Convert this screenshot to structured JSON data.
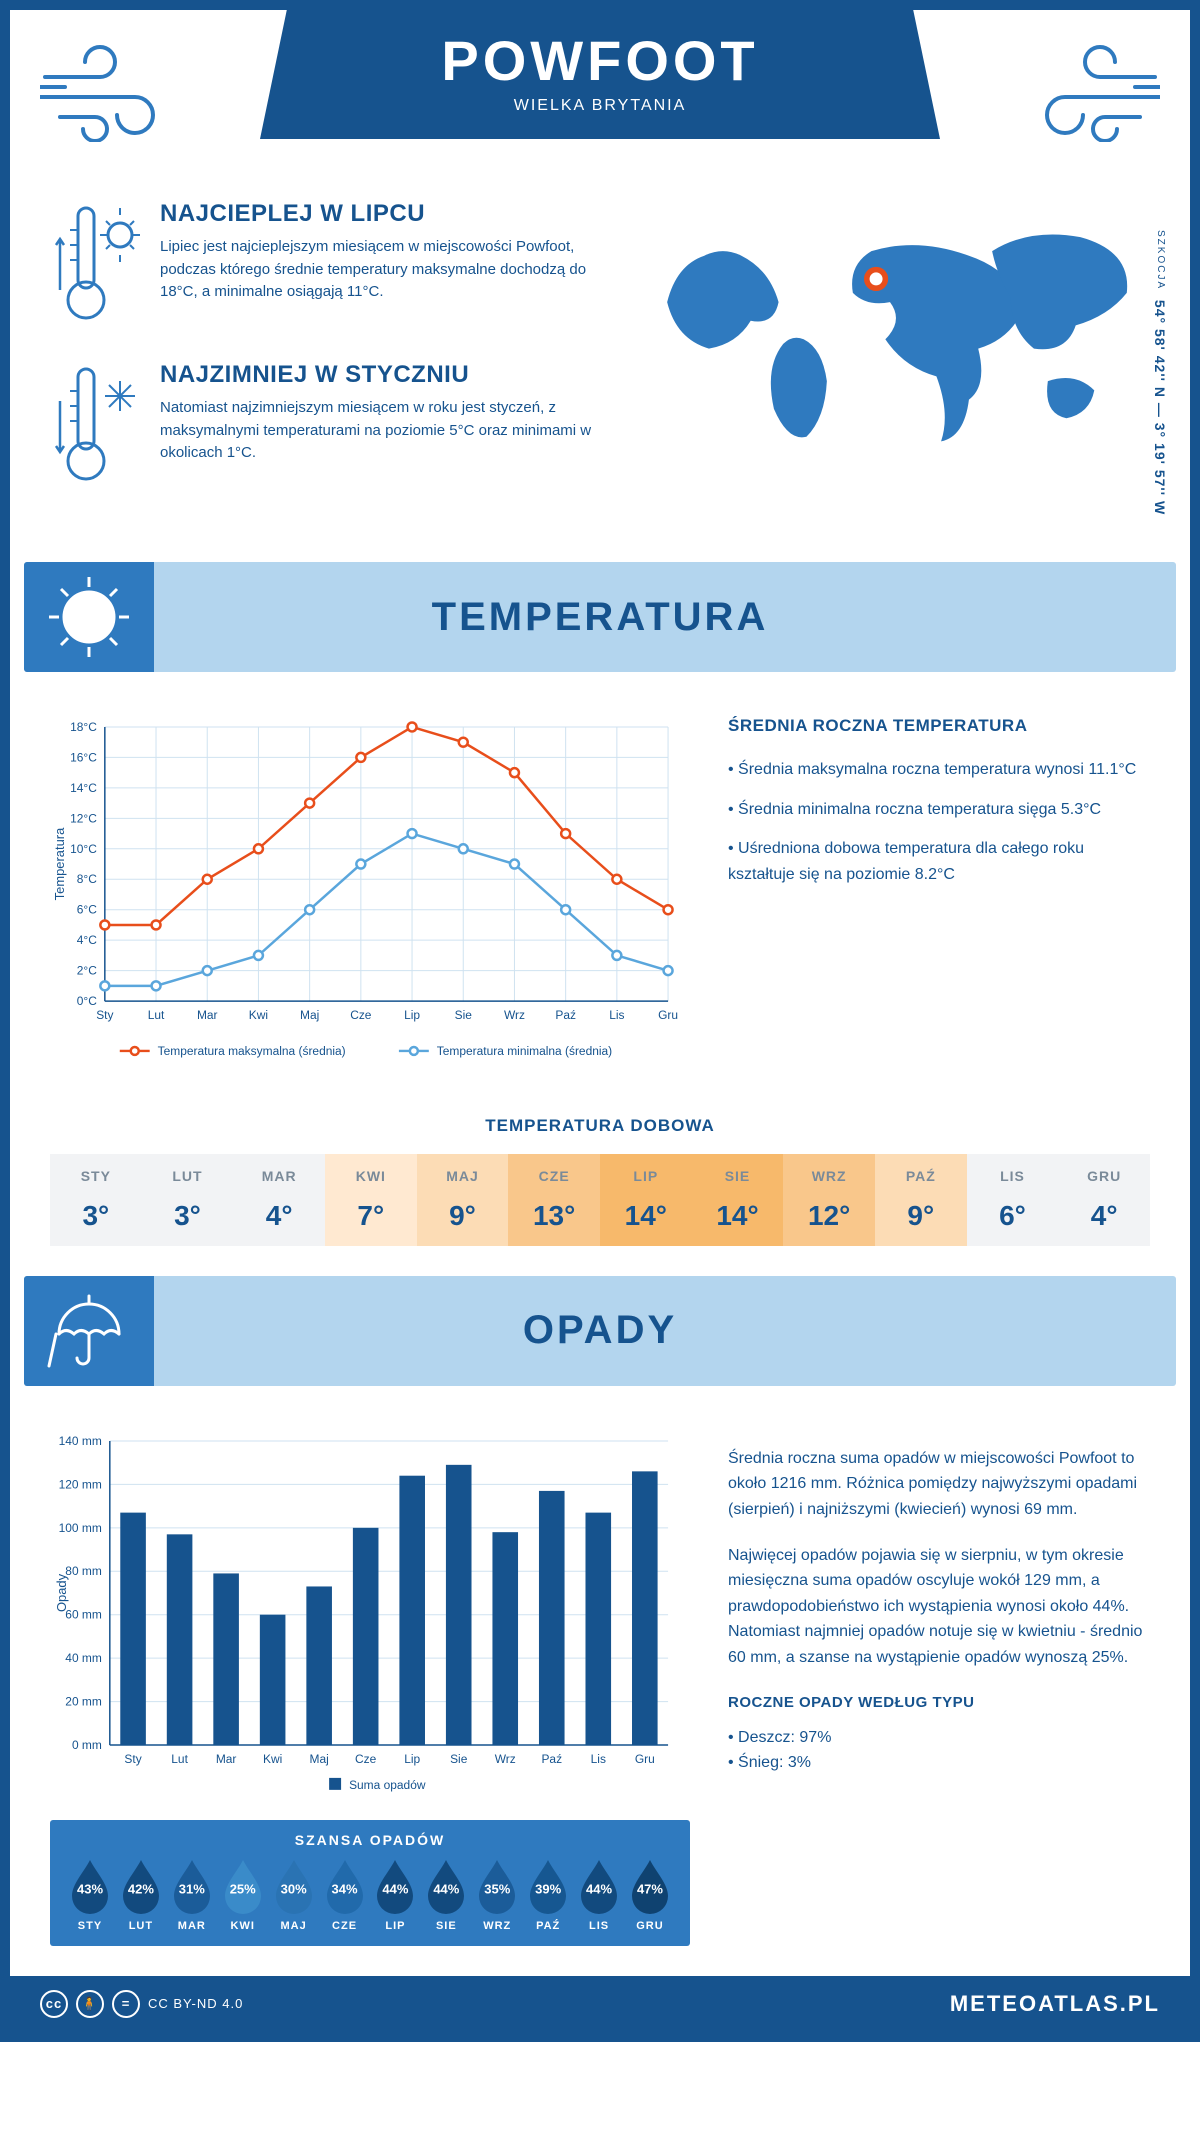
{
  "header": {
    "title": "POWFOOT",
    "subtitle": "WIELKA BRYTANIA"
  },
  "coords": {
    "line": "54° 58' 42'' N — 3° 19' 57'' W",
    "region": "SZKOCJA"
  },
  "map": {
    "marker_color": "#e84e1b",
    "land_color": "#2f7abf",
    "marker_x": 245,
    "marker_y": 85
  },
  "intro": {
    "hot": {
      "title": "NAJCIEPLEJ W LIPCU",
      "text": "Lipiec jest najcieplejszym miesiącem w miejscowości Powfoot, podczas którego średnie temperatury maksymalne dochodzą do 18°C, a minimalne osiągają 11°C."
    },
    "cold": {
      "title": "NAJZIMNIEJ W STYCZNIU",
      "text": "Natomiast najzimniejszym miesiącem w roku jest styczeń, z maksymalnymi temperaturami na poziomie 5°C oraz minimami w okolicach 1°C."
    }
  },
  "temp_section": {
    "title": "TEMPERATURA",
    "y_axis": "Temperatura",
    "y_ticks": [
      0,
      2,
      4,
      6,
      8,
      10,
      12,
      14,
      16,
      18
    ],
    "months": [
      "Sty",
      "Lut",
      "Mar",
      "Kwi",
      "Maj",
      "Cze",
      "Lip",
      "Sie",
      "Wrz",
      "Paź",
      "Lis",
      "Gru"
    ],
    "max_series": {
      "label": "Temperatura maksymalna (średnia)",
      "color": "#e84e1b",
      "values": [
        5,
        5,
        8,
        10,
        13,
        16,
        18,
        17,
        15,
        11,
        8,
        6
      ]
    },
    "min_series": {
      "label": "Temperatura minimalna (średnia)",
      "color": "#5aa6dc",
      "values": [
        1,
        1,
        2,
        3,
        6,
        9,
        11,
        10,
        9,
        6,
        3,
        2
      ]
    },
    "ylim": [
      0,
      18
    ],
    "grid_color": "#cfe2f0",
    "axis_color": "#16538e",
    "side": {
      "title": "ŚREDNIA ROCZNA TEMPERATURA",
      "l1": "Średnia maksymalna roczna temperatura wynosi 11.1°C",
      "l2": "Średnia minimalna roczna temperatura sięga 5.3°C",
      "l3": "Uśredniona dobowa temperatura dla całego roku kształtuje się na poziomie 8.2°C"
    }
  },
  "daily": {
    "title": "TEMPERATURA DOBOWA",
    "months": [
      "STY",
      "LUT",
      "MAR",
      "KWI",
      "MAJ",
      "CZE",
      "LIP",
      "SIE",
      "WRZ",
      "PAŹ",
      "LIS",
      "GRU"
    ],
    "values": [
      "3°",
      "3°",
      "4°",
      "7°",
      "9°",
      "13°",
      "14°",
      "14°",
      "12°",
      "9°",
      "6°",
      "4°"
    ],
    "bg_colors": [
      "#f2f3f5",
      "#f2f3f5",
      "#f2f3f5",
      "#ffe9d1",
      "#fcdcb5",
      "#f9c78b",
      "#f7b96b",
      "#f7b96b",
      "#f9c78b",
      "#fcdcb5",
      "#f2f3f5",
      "#f2f3f5"
    ]
  },
  "rain_section": {
    "title": "OPADY",
    "y_axis": "Opady",
    "y_ticks": [
      0,
      20,
      40,
      60,
      80,
      100,
      120,
      140
    ],
    "months": [
      "Sty",
      "Lut",
      "Mar",
      "Kwi",
      "Maj",
      "Cze",
      "Lip",
      "Sie",
      "Wrz",
      "Paź",
      "Lis",
      "Gru"
    ],
    "bars": {
      "label": "Suma opadów",
      "color": "#16538e",
      "values": [
        107,
        97,
        79,
        60,
        73,
        100,
        124,
        129,
        98,
        117,
        107,
        126
      ]
    },
    "ylim": [
      0,
      140
    ],
    "grid_color": "#cfe2f0",
    "axis_color": "#16538e",
    "side": {
      "p1": "Średnia roczna suma opadów w miejscowości Powfoot to około 1216 mm. Różnica pomiędzy najwyższymi opadami (sierpień) i najniższymi (kwiecień) wynosi 69 mm.",
      "p2": "Najwięcej opadów pojawia się w sierpniu, w tym okresie miesięczna suma opadów oscyluje wokół 129 mm, a prawdopodobieństwo ich wystąpienia wynosi około 44%. Natomiast najmniej opadów notuje się w kwietniu - średnio 60 mm, a szanse na wystąpienie opadów wynoszą 25%."
    },
    "chance": {
      "title": "SZANSA OPADÓW",
      "months": [
        "STY",
        "LUT",
        "MAR",
        "KWI",
        "MAJ",
        "CZE",
        "LIP",
        "SIE",
        "WRZ",
        "PAŹ",
        "LIS",
        "GRU"
      ],
      "pct": [
        "43%",
        "42%",
        "31%",
        "25%",
        "30%",
        "34%",
        "44%",
        "44%",
        "35%",
        "39%",
        "44%",
        "47%"
      ],
      "drop_colors": [
        "#124a7e",
        "#124a7e",
        "#1b5c99",
        "#3a8bc9",
        "#2a73b3",
        "#216aab",
        "#124a7e",
        "#124a7e",
        "#1b5c99",
        "#165791",
        "#124a7e",
        "#0f4270"
      ]
    },
    "types": {
      "title": "ROCZNE OPADY WEDŁUG TYPU",
      "l1": "Deszcz: 97%",
      "l2": "Śnieg: 3%"
    }
  },
  "footer": {
    "license": "CC BY-ND 4.0",
    "site": "METEOATLAS.PL"
  }
}
